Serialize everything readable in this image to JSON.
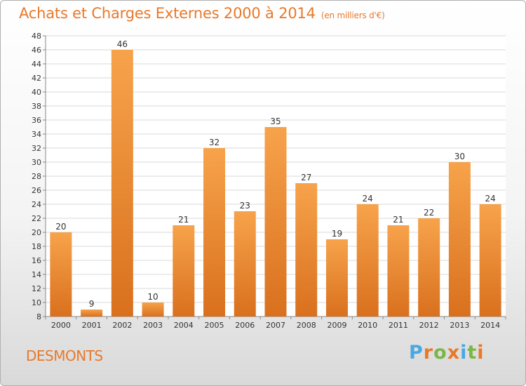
{
  "header": {
    "title": "Achats et Charges Externes 2000 à 2014",
    "subtitle": "(en milliers d'€)"
  },
  "footer": {
    "commune": "DESMONTS"
  },
  "logo": {
    "text": "Proxiti",
    "letter_colors": [
      "#4aa8e0",
      "#e8792a",
      "#7ab648",
      "#e8792a",
      "#4aa8e0",
      "#7ab648",
      "#e8792a"
    ]
  },
  "colors": {
    "bar_top": "#f7a34b",
    "bar_bottom": "#d9701e",
    "accent": "#e8792a",
    "grid": "#d8d8d8"
  },
  "chart_data": {
    "type": "bar",
    "title": "Achats et Charges Externes 2000 à 2014",
    "subtitle": "(en milliers d'€)",
    "categories": [
      "2000",
      "2001",
      "2002",
      "2003",
      "2004",
      "2005",
      "2006",
      "2007",
      "2008",
      "2009",
      "2010",
      "2011",
      "2012",
      "2013",
      "2014"
    ],
    "values": [
      20,
      9,
      46,
      10,
      21,
      32,
      23,
      35,
      27,
      19,
      24,
      21,
      22,
      30,
      24
    ],
    "ylim": [
      8,
      48
    ],
    "yticks": [
      8,
      10,
      12,
      14,
      16,
      18,
      20,
      22,
      24,
      26,
      28,
      30,
      32,
      34,
      36,
      38,
      40,
      42,
      44,
      46,
      48
    ],
    "grid": true,
    "xlabel": "",
    "ylabel": ""
  }
}
